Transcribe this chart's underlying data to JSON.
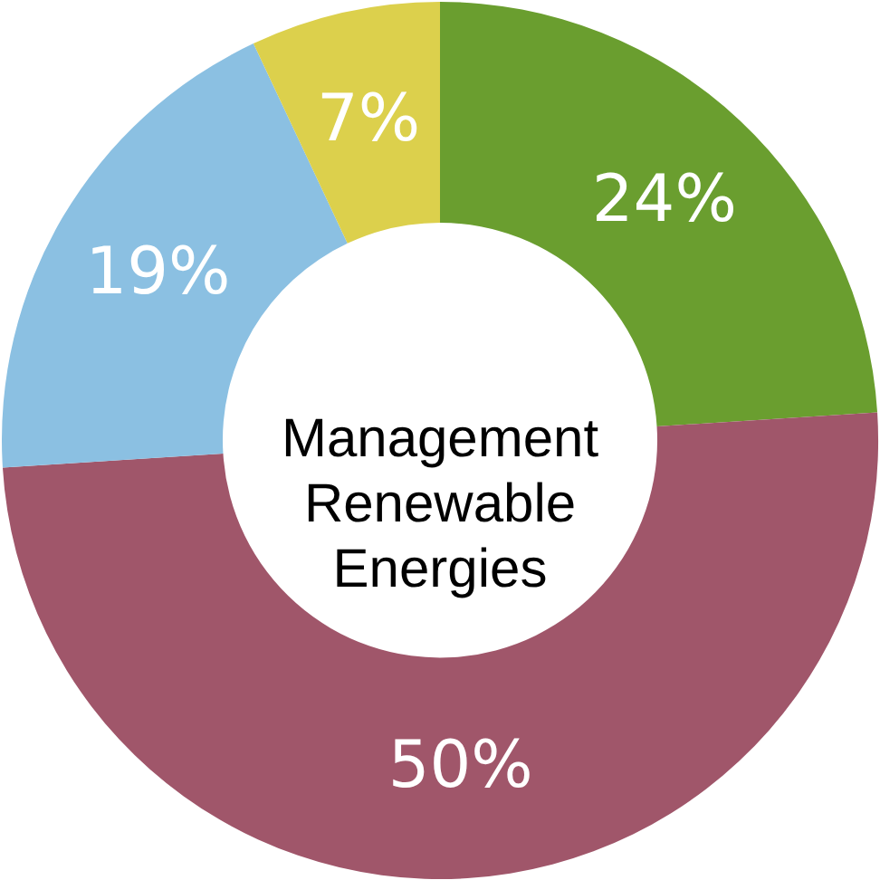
{
  "chart_data": {
    "type": "donut",
    "title": "Management Renewable Energies",
    "categories": [
      null,
      null,
      null,
      null
    ],
    "values": [
      24,
      50,
      19,
      7
    ],
    "colors": [
      "#6a9e2f",
      "#a0566a",
      "#8bc0e2",
      "#dcd04c"
    ],
    "value_labels": [
      "24%",
      "50%",
      "19%",
      "7%"
    ]
  }
}
